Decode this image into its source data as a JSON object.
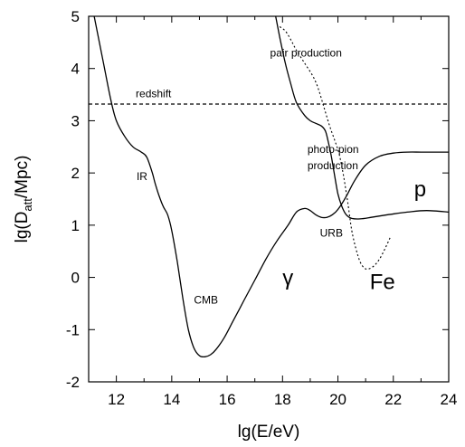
{
  "chart_data": {
    "type": "line",
    "xlabel": "lg(E/eV)",
    "ylabel": {
      "main": "lg(D",
      "sub": "att",
      "tail": "/Mpc)"
    },
    "xlim": [
      11,
      24
    ],
    "ylim": [
      -2,
      5
    ],
    "xticks": [
      {
        "value": 12,
        "label": "12"
      },
      {
        "value": 14,
        "label": "14"
      },
      {
        "value": 16,
        "label": "16"
      },
      {
        "value": 18,
        "label": "18"
      },
      {
        "value": 20,
        "label": "20"
      },
      {
        "value": 22,
        "label": "22"
      },
      {
        "value": 24,
        "label": "24"
      }
    ],
    "yticks": [
      {
        "value": -2,
        "label": "-2"
      },
      {
        "value": -1,
        "label": "-1"
      },
      {
        "value": 0,
        "label": "0"
      },
      {
        "value": 1,
        "label": "1"
      },
      {
        "value": 2,
        "label": "2"
      },
      {
        "value": 3,
        "label": "3"
      },
      {
        "value": 4,
        "label": "4"
      },
      {
        "value": 5,
        "label": "5"
      }
    ],
    "grid": false,
    "series": [
      {
        "name": "γ",
        "style": "solid",
        "x": [
          11.2,
          11.5,
          11.8,
          12.0,
          12.3,
          12.6,
          12.9,
          13.1,
          13.3,
          13.4,
          13.55,
          13.7,
          13.85,
          14.0,
          14.2,
          14.4,
          14.6,
          14.8,
          15.0,
          15.2,
          15.4,
          15.6,
          15.9,
          16.2,
          16.6,
          17.0,
          17.4,
          17.8,
          18.2,
          18.5,
          18.8,
          19.0,
          19.2,
          19.4,
          19.6,
          19.8,
          20.0,
          20.3,
          20.6,
          21.0,
          21.5,
          22.0,
          22.5,
          23.0,
          23.5,
          24.0
        ],
        "y": [
          5.0,
          4.2,
          3.4,
          3.0,
          2.7,
          2.5,
          2.4,
          2.3,
          2.0,
          1.8,
          1.55,
          1.35,
          1.2,
          0.9,
          0.3,
          -0.4,
          -1.0,
          -1.35,
          -1.5,
          -1.52,
          -1.48,
          -1.38,
          -1.15,
          -0.85,
          -0.45,
          -0.05,
          0.35,
          0.7,
          1.0,
          1.25,
          1.32,
          1.28,
          1.2,
          1.15,
          1.15,
          1.2,
          1.3,
          1.55,
          1.85,
          2.15,
          2.32,
          2.38,
          2.4,
          2.4,
          2.4,
          2.4
        ],
        "color": "#000000"
      },
      {
        "name": "p",
        "style": "solid",
        "x": [
          17.75,
          17.9,
          18.1,
          18.3,
          18.5,
          18.8,
          19.0,
          19.2,
          19.4,
          19.55,
          19.65,
          19.75,
          19.85,
          20.0,
          20.15,
          20.3,
          20.5,
          20.8,
          21.2,
          21.8,
          22.5,
          23.2,
          24.0
        ],
        "y": [
          5.0,
          4.6,
          4.1,
          3.7,
          3.35,
          3.1,
          3.0,
          2.95,
          2.9,
          2.8,
          2.6,
          2.35,
          2.05,
          1.6,
          1.35,
          1.2,
          1.13,
          1.12,
          1.15,
          1.2,
          1.25,
          1.28,
          1.25
        ],
        "color": "#000000"
      },
      {
        "name": "Fe",
        "style": "dotted",
        "x": [
          17.9,
          18.1,
          18.3,
          18.5,
          18.8,
          19.1,
          19.3,
          19.5,
          19.7,
          19.9,
          20.05,
          20.2,
          20.35,
          20.5,
          20.65,
          20.8,
          20.95,
          21.1,
          21.3,
          21.5,
          21.7,
          21.9
        ],
        "y": [
          4.8,
          4.72,
          4.55,
          4.35,
          4.1,
          3.85,
          3.6,
          3.25,
          2.9,
          2.6,
          2.35,
          1.95,
          1.45,
          0.9,
          0.55,
          0.3,
          0.18,
          0.16,
          0.22,
          0.35,
          0.55,
          0.78
        ],
        "color": "#000000"
      },
      {
        "name": "redshift",
        "style": "dashed",
        "x": [
          11,
          24
        ],
        "y": [
          3.32,
          3.32
        ],
        "color": "#000000"
      }
    ],
    "annotations": [
      {
        "text": "pair production",
        "x": 17.55,
        "y": 4.23,
        "size": "small"
      },
      {
        "text": "redshift",
        "x": 12.7,
        "y": 3.45,
        "size": "small"
      },
      {
        "text": "photo-pion",
        "x": 18.9,
        "y": 2.38,
        "size": "small"
      },
      {
        "text": "production",
        "x": 18.9,
        "y": 2.07,
        "size": "small"
      },
      {
        "text": "IR",
        "x": 12.73,
        "y": 1.86,
        "size": "small"
      },
      {
        "text": "URB",
        "x": 19.35,
        "y": 0.78,
        "size": "small"
      },
      {
        "text": "CMB",
        "x": 14.8,
        "y": -0.5,
        "size": "small"
      },
      {
        "text": "γ",
        "x": 18.0,
        "y": -0.15,
        "size": "large"
      },
      {
        "text": "Fe",
        "x": 21.15,
        "y": -0.22,
        "size": "large"
      },
      {
        "text": "p",
        "x": 22.75,
        "y": 1.55,
        "size": "large"
      }
    ]
  }
}
